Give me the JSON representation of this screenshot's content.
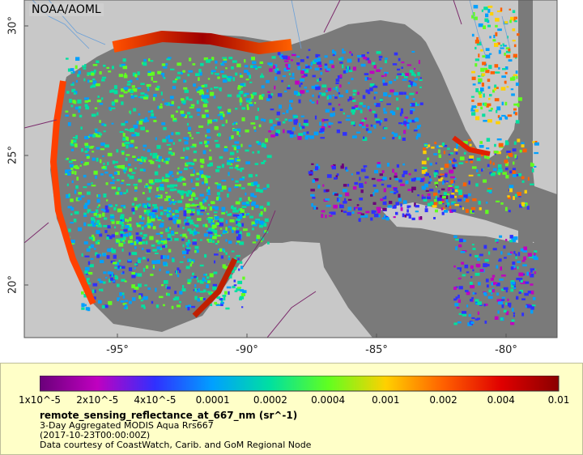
{
  "credit_tag": "NOAA/AOML",
  "axes": {
    "lat_ticks": [
      {
        "label": "30°",
        "value": 30
      },
      {
        "label": "25°",
        "value": 25
      },
      {
        "label": "20°",
        "value": 20
      }
    ],
    "lon_ticks": [
      {
        "label": "-95°",
        "value": -95
      },
      {
        "label": "-90°",
        "value": -90
      },
      {
        "label": "-85°",
        "value": -85
      },
      {
        "label": "-80°",
        "value": -80
      }
    ]
  },
  "legend": {
    "colorbar_ticks": [
      "1x10^-5",
      "2x10^-5",
      "4x10^-5",
      "0.0001",
      "0.0002",
      "0.0004",
      "0.001",
      "0.002",
      "0.004",
      "0.01"
    ],
    "variable": "remote_sensing_reflectance_at_667_nm (sr^-1)",
    "product": "3-Day Aggregated MODIS Aqua Rrs667",
    "time": "(2017-10-23T00:00:00Z)",
    "source": "Data courtesy of CoastWatch, Carib. and GoM Regional Node"
  },
  "colors": {
    "land": "#c8c8c8",
    "nodata_ocean": "#7a7a7a",
    "border": "#7b2a6b",
    "river": "#6aa0d8"
  },
  "colormap": [
    "#6a007a",
    "#c000c0",
    "#3030ff",
    "#00a0ff",
    "#00e0a0",
    "#60ff20",
    "#ffd000",
    "#ff6000",
    "#e00000",
    "#8a0000"
  ]
}
